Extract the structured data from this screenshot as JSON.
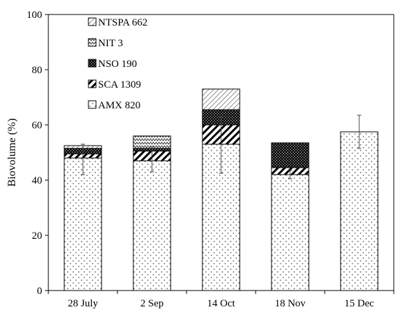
{
  "chart_data": {
    "type": "bar",
    "stacked": true,
    "title": "",
    "xlabel": "",
    "ylabel": "Biovolume (%)",
    "ylim": [
      0,
      100
    ],
    "yticks": [
      0,
      20,
      40,
      60,
      80,
      100
    ],
    "categories": [
      "28 July",
      "2 Sep",
      "14 Oct",
      "18 Nov",
      "15 Dec"
    ],
    "series": [
      {
        "name": "AMX 820",
        "pattern": "dots",
        "values": [
          48,
          47,
          53,
          42,
          57.5
        ]
      },
      {
        "name": "SCA 1309",
        "pattern": "diagonal-thick",
        "values": [
          1.5,
          3.5,
          7,
          2.5,
          0
        ]
      },
      {
        "name": "NSO 190",
        "pattern": "dark-checker",
        "values": [
          2,
          1,
          5.5,
          9,
          0
        ]
      },
      {
        "name": "NIT 3",
        "pattern": "zigzag",
        "values": [
          0,
          4.5,
          0,
          0,
          0
        ]
      },
      {
        "name": "NTSPA 662",
        "pattern": "diagonal-fine",
        "values": [
          1,
          0,
          7.5,
          0,
          0
        ]
      }
    ],
    "error_bars": [
      {
        "category": "28 July",
        "center": 47.5,
        "low": 42,
        "high": 53
      },
      {
        "category": "2 Sep",
        "center": 47.5,
        "low": 43,
        "high": 52
      },
      {
        "category": "14 Oct",
        "center": 53,
        "low": 42.5,
        "high": 63
      },
      {
        "category": "18 Nov",
        "center": 42,
        "low": 40.5,
        "high": 43.5
      },
      {
        "category": "15 Dec",
        "center": 57.5,
        "low": 51.5,
        "high": 63.5
      }
    ],
    "legend": {
      "placement": "top-left",
      "order": [
        "NTSPA 662",
        "NIT 3",
        "NSO 190",
        "SCA 1309",
        "AMX 820"
      ]
    },
    "grid": false
  }
}
